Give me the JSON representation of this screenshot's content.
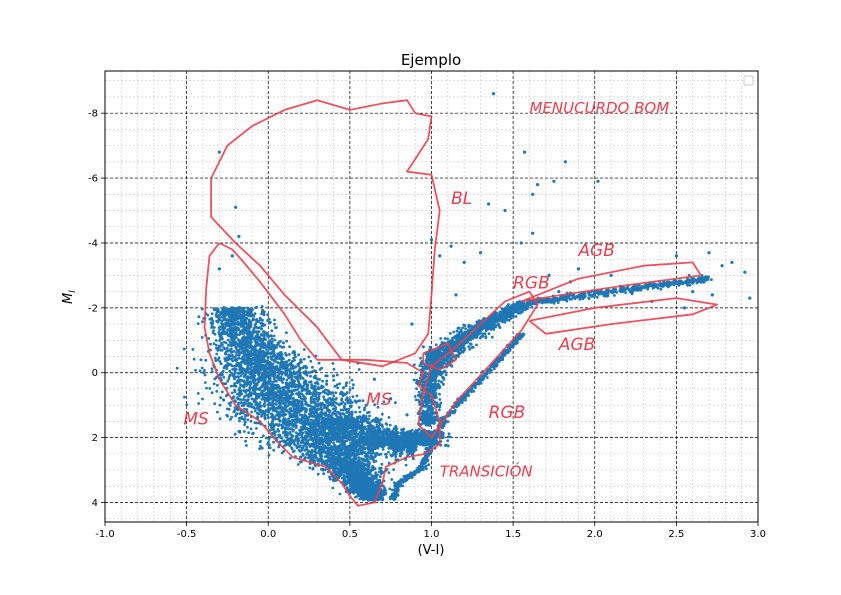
{
  "chart_data": {
    "type": "scatter",
    "title": "Ejemplo",
    "xlabel": "(V-I)",
    "ylabel": "M",
    "ylabel_sub": "I",
    "xlim": [
      -1.0,
      3.0
    ],
    "ylim": [
      4.6,
      -9.3
    ],
    "y_inverted": true,
    "xticks": [
      -1.0,
      -0.5,
      0.0,
      0.5,
      1.0,
      1.5,
      2.0,
      2.5,
      3.0
    ],
    "xtick_labels": [
      "-1.0",
      "-0.5",
      "0.0",
      "0.5",
      "1.0",
      "1.5",
      "2.0",
      "2.5",
      "3.0"
    ],
    "yticks": [
      -8,
      -6,
      -4,
      -2,
      0,
      2,
      4
    ],
    "ytick_labels": [
      "-8",
      "-6",
      "-4",
      "-2",
      "0",
      "2",
      "4"
    ],
    "grid": true,
    "legend": "top-right (empty)",
    "point_color": "#1f77b4",
    "annotation_color": "#e8404e",
    "annotations": [
      {
        "text": "MS",
        "x": -0.52,
        "y": 1.6
      },
      {
        "text": "MS",
        "x": 0.6,
        "y": 1.0
      },
      {
        "text": "BL",
        "x": 1.12,
        "y": -5.2
      },
      {
        "text": "RGB",
        "x": 1.35,
        "y": 1.4
      },
      {
        "text": "RGB",
        "x": 1.5,
        "y": -2.6
      },
      {
        "text": "AGB",
        "x": 1.9,
        "y": -3.6
      },
      {
        "text": "AGB",
        "x": 1.78,
        "y": -0.7
      },
      {
        "text": "TRANSICIÓN",
        "x": 1.05,
        "y": 3.2
      },
      {
        "text": "MENUCURDO BOM",
        "x": 1.6,
        "y": -8.0
      }
    ],
    "series": [
      {
        "name": "",
        "sparse_points": [
          {
            "x": 1.38,
            "y": -8.6
          },
          {
            "x": -0.3,
            "y": -6.8
          },
          {
            "x": 1.82,
            "y": -6.5
          },
          {
            "x": 1.75,
            "y": -5.9
          },
          {
            "x": 1.65,
            "y": -5.8
          },
          {
            "x": 2.02,
            "y": -5.9
          },
          {
            "x": 1.57,
            "y": -6.8
          },
          {
            "x": 1.62,
            "y": -5.5
          },
          {
            "x": 1.35,
            "y": -5.2
          },
          {
            "x": 1.45,
            "y": -5.0
          },
          {
            "x": -0.2,
            "y": -5.1
          },
          {
            "x": -0.18,
            "y": -4.2
          },
          {
            "x": 1.62,
            "y": -4.3
          },
          {
            "x": 1.55,
            "y": -4.0
          },
          {
            "x": 2.7,
            "y": -3.7
          },
          {
            "x": 2.5,
            "y": -3.6
          },
          {
            "x": 2.84,
            "y": -3.4
          },
          {
            "x": 2.78,
            "y": -3.3
          },
          {
            "x": 2.92,
            "y": -3.1
          },
          {
            "x": 2.6,
            "y": -2.9
          },
          {
            "x": 2.44,
            "y": -2.7
          },
          {
            "x": 2.25,
            "y": -2.6
          },
          {
            "x": 2.95,
            "y": -2.3
          },
          {
            "x": 2.55,
            "y": -2.0
          },
          {
            "x": 2.72,
            "y": -2.4
          },
          {
            "x": 1.9,
            "y": -3.2
          },
          {
            "x": 1.72,
            "y": -3.0
          },
          {
            "x": 1.3,
            "y": -3.7
          },
          {
            "x": 1.2,
            "y": -3.4
          },
          {
            "x": 1.12,
            "y": -3.9
          },
          {
            "x": 1.05,
            "y": -3.6
          },
          {
            "x": 1.0,
            "y": -4.1
          },
          {
            "x": 0.3,
            "y": 0.3
          },
          {
            "x": 0.45,
            "y": 0.6
          },
          {
            "x": 0.55,
            "y": -0.3
          },
          {
            "x": 0.75,
            "y": 0.8
          },
          {
            "x": 0.85,
            "y": 1.3
          },
          {
            "x": 0.6,
            "y": 1.0
          },
          {
            "x": -0.3,
            "y": -3.2
          },
          {
            "x": -0.22,
            "y": -3.6
          },
          {
            "x": 1.25,
            "y": -1.2
          },
          {
            "x": 1.4,
            "y": -1.7
          },
          {
            "x": 1.85,
            "y": -2.8
          },
          {
            "x": 2.1,
            "y": -3.0
          },
          {
            "x": 2.35,
            "y": -2.2
          },
          {
            "x": 2.6,
            "y": -2.5
          },
          {
            "x": 0.95,
            "y": -0.8
          },
          {
            "x": 0.88,
            "y": -1.5
          },
          {
            "x": 0.65,
            "y": 0.2
          },
          {
            "x": 0.4,
            "y": 0.1
          },
          {
            "x": 0.2,
            "y": -0.4
          },
          {
            "x": 1.15,
            "y": -2.4
          },
          {
            "x": 1.6,
            "y": -2.2
          },
          {
            "x": 1.78,
            "y": -2.5
          }
        ],
        "dense_regions": [
          {
            "name": "main-sequence",
            "n": 5200,
            "path": [
              {
                "x": -0.22,
                "y": -2.0
              },
              {
                "x": -0.1,
                "y": -0.6
              },
              {
                "x": 0.05,
                "y": 0.4
              },
              {
                "x": 0.2,
                "y": 1.2
              },
              {
                "x": 0.35,
                "y": 2.0
              },
              {
                "x": 0.48,
                "y": 2.8
              },
              {
                "x": 0.6,
                "y": 3.6
              },
              {
                "x": 0.65,
                "y": 3.9
              }
            ],
            "width": [
              0.16,
              0.28,
              0.4,
              0.45,
              0.38,
              0.22,
              0.1,
              0.05
            ]
          },
          {
            "name": "turnoff-subgiant",
            "n": 1400,
            "path": [
              {
                "x": 0.45,
                "y": 1.4
              },
              {
                "x": 0.6,
                "y": 2.0
              },
              {
                "x": 0.75,
                "y": 2.2
              },
              {
                "x": 0.9,
                "y": 2.2
              },
              {
                "x": 1.0,
                "y": 1.8
              }
            ],
            "width": [
              0.2,
              0.22,
              0.2,
              0.16,
              0.12
            ]
          },
          {
            "name": "red-giant-branch",
            "n": 1600,
            "path": [
              {
                "x": 0.98,
                "y": 1.6
              },
              {
                "x": 0.98,
                "y": 0.6
              },
              {
                "x": 1.02,
                "y": -0.3
              },
              {
                "x": 1.15,
                "y": -0.9
              },
              {
                "x": 1.3,
                "y": -1.4
              },
              {
                "x": 1.45,
                "y": -1.8
              },
              {
                "x": 1.55,
                "y": -2.1
              }
            ],
            "width": [
              0.06,
              0.07,
              0.1,
              0.1,
              0.08,
              0.06,
              0.05
            ]
          },
          {
            "name": "red-clump",
            "n": 350,
            "path": [
              {
                "x": 0.98,
                "y": -0.5
              },
              {
                "x": 1.05,
                "y": -0.5
              }
            ],
            "width": [
              0.08,
              0.08
            ]
          },
          {
            "name": "pre-main-sequence-track",
            "n": 700,
            "path": [
              {
                "x": 0.76,
                "y": 3.9
              },
              {
                "x": 0.8,
                "y": 3.4
              },
              {
                "x": 0.95,
                "y": 2.9
              },
              {
                "x": 1.0,
                "y": 2.2
              },
              {
                "x": 1.08,
                "y": 1.4
              },
              {
                "x": 1.25,
                "y": 0.5
              },
              {
                "x": 1.45,
                "y": -0.6
              },
              {
                "x": 1.55,
                "y": -1.2
              }
            ],
            "width": [
              0.015,
              0.015,
              0.015,
              0.015,
              0.015,
              0.015,
              0.015,
              0.015
            ]
          },
          {
            "name": "agb-band",
            "n": 500,
            "path": [
              {
                "x": 1.55,
                "y": -2.1
              },
              {
                "x": 1.8,
                "y": -2.3
              },
              {
                "x": 2.1,
                "y": -2.5
              },
              {
                "x": 2.4,
                "y": -2.7
              },
              {
                "x": 2.7,
                "y": -2.9
              }
            ],
            "width": [
              0.05,
              0.05,
              0.05,
              0.05,
              0.05
            ]
          }
        ]
      }
    ],
    "outlines": [
      {
        "name": "ms-outline",
        "points": [
          {
            "x": -0.3,
            "y": -4.0
          },
          {
            "x": -0.36,
            "y": -3.6
          },
          {
            "x": -0.38,
            "y": -2.6
          },
          {
            "x": -0.39,
            "y": -1.4
          },
          {
            "x": -0.36,
            "y": -0.6
          },
          {
            "x": -0.3,
            "y": 0.2
          },
          {
            "x": -0.2,
            "y": 1.0
          },
          {
            "x": -0.05,
            "y": 1.5
          },
          {
            "x": 0.05,
            "y": 2.1
          },
          {
            "x": 0.15,
            "y": 2.6
          },
          {
            "x": 0.35,
            "y": 2.9
          },
          {
            "x": 0.45,
            "y": 3.4
          },
          {
            "x": 0.5,
            "y": 3.8
          },
          {
            "x": 0.55,
            "y": 4.1
          },
          {
            "x": 0.65,
            "y": 4.0
          },
          {
            "x": 0.7,
            "y": 3.4
          },
          {
            "x": 0.72,
            "y": 2.9
          },
          {
            "x": 0.85,
            "y": 2.6
          },
          {
            "x": 0.96,
            "y": 2.5
          },
          {
            "x": 1.05,
            "y": 2.2
          },
          {
            "x": 1.05,
            "y": 1.5
          },
          {
            "x": 1.0,
            "y": 0.7
          },
          {
            "x": 0.92,
            "y": 0.4
          },
          {
            "x": 0.95,
            "y": 0.0
          },
          {
            "x": 0.85,
            "y": -0.3
          },
          {
            "x": 0.6,
            "y": -0.4
          },
          {
            "x": 0.3,
            "y": -0.4
          },
          {
            "x": 0.2,
            "y": -1.0
          },
          {
            "x": 0.1,
            "y": -1.8
          },
          {
            "x": -0.05,
            "y": -2.8
          },
          {
            "x": -0.15,
            "y": -3.4
          },
          {
            "x": -0.22,
            "y": -3.8
          },
          {
            "x": -0.3,
            "y": -4.0
          }
        ]
      },
      {
        "name": "blue-loop-outline",
        "points": [
          {
            "x": -0.35,
            "y": -6.0
          },
          {
            "x": -0.25,
            "y": -7.0
          },
          {
            "x": -0.1,
            "y": -7.6
          },
          {
            "x": 0.1,
            "y": -8.1
          },
          {
            "x": 0.3,
            "y": -8.4
          },
          {
            "x": 0.5,
            "y": -8.1
          },
          {
            "x": 0.7,
            "y": -8.3
          },
          {
            "x": 0.85,
            "y": -8.4
          },
          {
            "x": 0.9,
            "y": -8.0
          },
          {
            "x": 1.0,
            "y": -7.9
          },
          {
            "x": 0.98,
            "y": -7.2
          },
          {
            "x": 0.85,
            "y": -6.2
          },
          {
            "x": 1.0,
            "y": -6.1
          },
          {
            "x": 1.05,
            "y": -5.0
          },
          {
            "x": 1.02,
            "y": -3.8
          },
          {
            "x": 1.0,
            "y": -2.4
          },
          {
            "x": 0.98,
            "y": -1.2
          },
          {
            "x": 0.9,
            "y": -0.6
          },
          {
            "x": 0.7,
            "y": -0.2
          },
          {
            "x": 0.45,
            "y": -0.4
          },
          {
            "x": 0.3,
            "y": -1.4
          },
          {
            "x": 0.1,
            "y": -2.4
          },
          {
            "x": -0.05,
            "y": -3.3
          },
          {
            "x": -0.2,
            "y": -4.0
          },
          {
            "x": -0.35,
            "y": -4.8
          },
          {
            "x": -0.35,
            "y": -6.0
          }
        ]
      },
      {
        "name": "rgb-outline",
        "points": [
          {
            "x": 1.0,
            "y": -0.2
          },
          {
            "x": 1.15,
            "y": -0.8
          },
          {
            "x": 1.3,
            "y": -1.5
          },
          {
            "x": 1.45,
            "y": -2.2
          },
          {
            "x": 1.6,
            "y": -2.5
          },
          {
            "x": 1.65,
            "y": -2.1
          },
          {
            "x": 1.55,
            "y": -1.3
          },
          {
            "x": 1.35,
            "y": -0.2
          },
          {
            "x": 1.15,
            "y": 0.9
          },
          {
            "x": 1.0,
            "y": 2.0
          },
          {
            "x": 0.92,
            "y": 1.6
          },
          {
            "x": 0.95,
            "y": 0.6
          },
          {
            "x": 1.0,
            "y": -0.2
          }
        ]
      },
      {
        "name": "agb-outline-upper",
        "points": [
          {
            "x": 1.55,
            "y": -2.2
          },
          {
            "x": 1.9,
            "y": -2.9
          },
          {
            "x": 2.3,
            "y": -3.3
          },
          {
            "x": 2.6,
            "y": -3.4
          },
          {
            "x": 2.65,
            "y": -3.0
          },
          {
            "x": 2.2,
            "y": -2.7
          },
          {
            "x": 1.8,
            "y": -2.4
          },
          {
            "x": 1.55,
            "y": -2.2
          }
        ]
      },
      {
        "name": "agb-outline-lower",
        "points": [
          {
            "x": 1.6,
            "y": -1.6
          },
          {
            "x": 2.0,
            "y": -2.0
          },
          {
            "x": 2.5,
            "y": -2.3
          },
          {
            "x": 2.75,
            "y": -2.1
          },
          {
            "x": 2.6,
            "y": -1.8
          },
          {
            "x": 2.1,
            "y": -1.5
          },
          {
            "x": 1.7,
            "y": -1.2
          },
          {
            "x": 1.6,
            "y": -1.6
          }
        ]
      },
      {
        "name": "red-clump-outline",
        "points": [
          {
            "x": 0.95,
            "y": -0.6
          },
          {
            "x": 1.1,
            "y": -0.9
          },
          {
            "x": 1.15,
            "y": -0.4
          },
          {
            "x": 1.05,
            "y": -0.1
          },
          {
            "x": 0.95,
            "y": -0.3
          },
          {
            "x": 0.95,
            "y": -0.6
          }
        ]
      }
    ]
  }
}
